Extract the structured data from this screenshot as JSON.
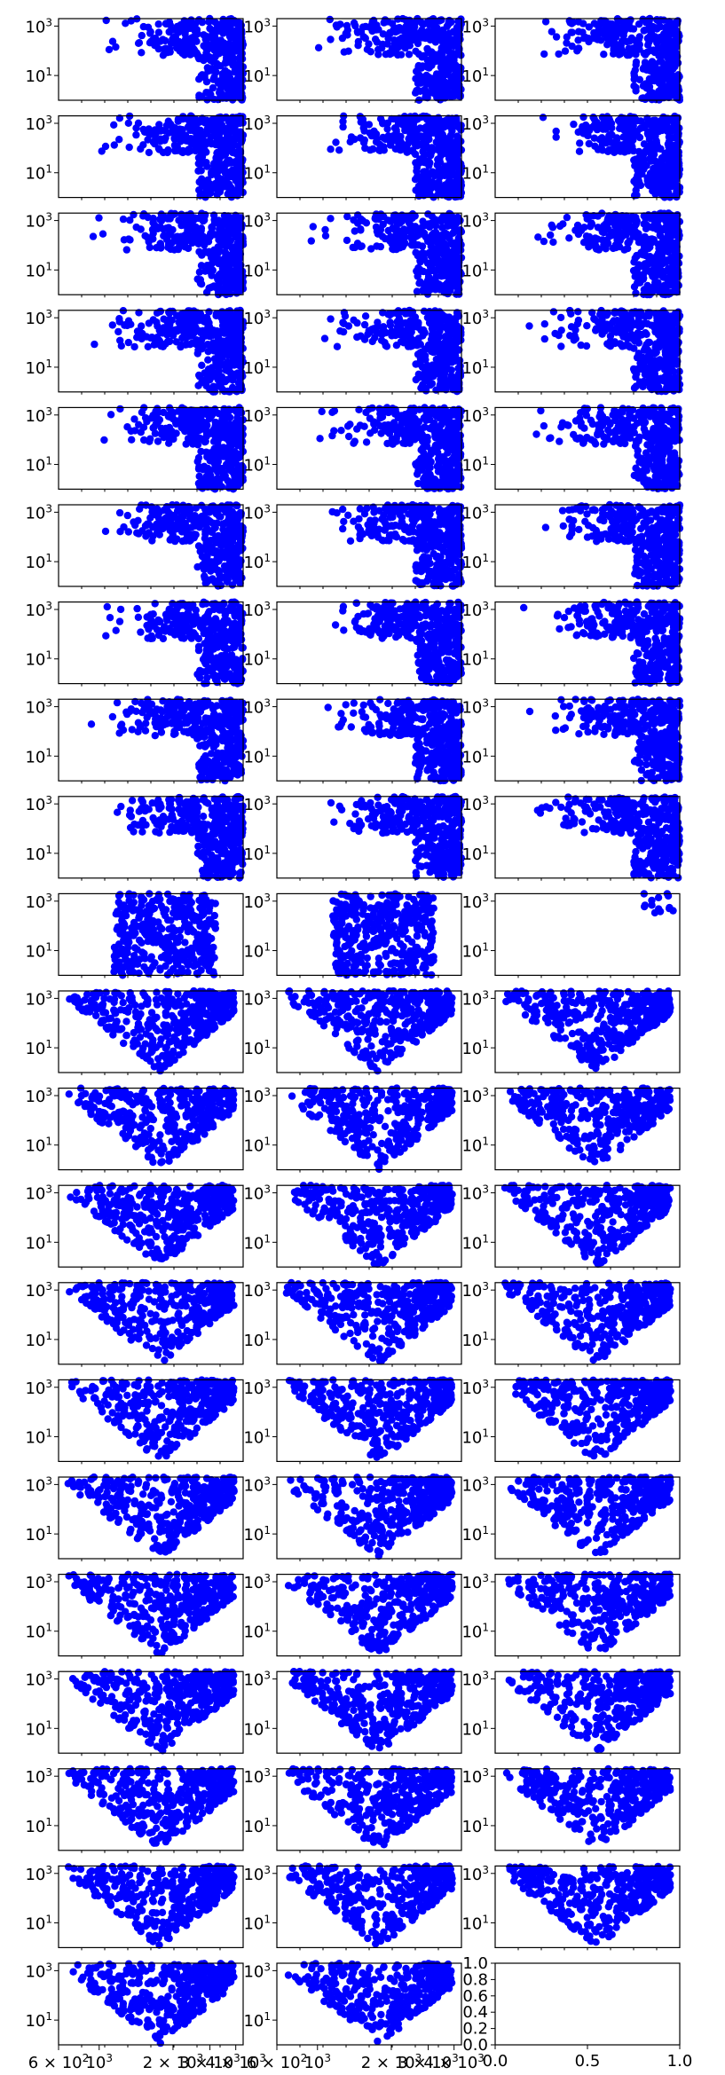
{
  "figure": {
    "rows": 21,
    "cols": 3,
    "marker_color": "#0000ff",
    "frame_color": "#000000",
    "background": "#ffffff"
  },
  "chart_data": {
    "type": "scatter",
    "yscale": "log",
    "xscale": "log",
    "ylim": [
      1,
      2000
    ],
    "ytick_labels": [
      "10^1",
      "10^3"
    ],
    "bottom_xtick_labels": [
      "6 × 10^2",
      "10^3",
      "2 × 10^3",
      "3 × 10^3",
      "4 × 10^3"
    ],
    "empty_panel": {
      "xlim": [
        0.0,
        1.0
      ],
      "ylim": [
        0.0,
        1.0
      ],
      "xtick_labels": [
        "0.0",
        "0.5",
        "1.0"
      ],
      "ytick_labels": [
        "0.0",
        "0.2",
        "0.4",
        "0.6",
        "0.8",
        "1.0"
      ]
    },
    "panel_groups": [
      {
        "name": "",
        "panels": 27,
        "x_range": [
          0.05,
          1.0
        ],
        "shape": "wedge-right"
      },
      {
        "name": "",
        "panels": 2,
        "x_range": [
          0.3,
          0.85
        ],
        "shape": "block"
      },
      {
        "name": "",
        "panels": 1,
        "x_range": [
          0.8,
          1.0
        ],
        "shape": "sparse"
      },
      {
        "name": "",
        "panels": 32,
        "x_range": [
          0.05,
          0.95
        ],
        "shape": "wedge-down"
      }
    ]
  }
}
